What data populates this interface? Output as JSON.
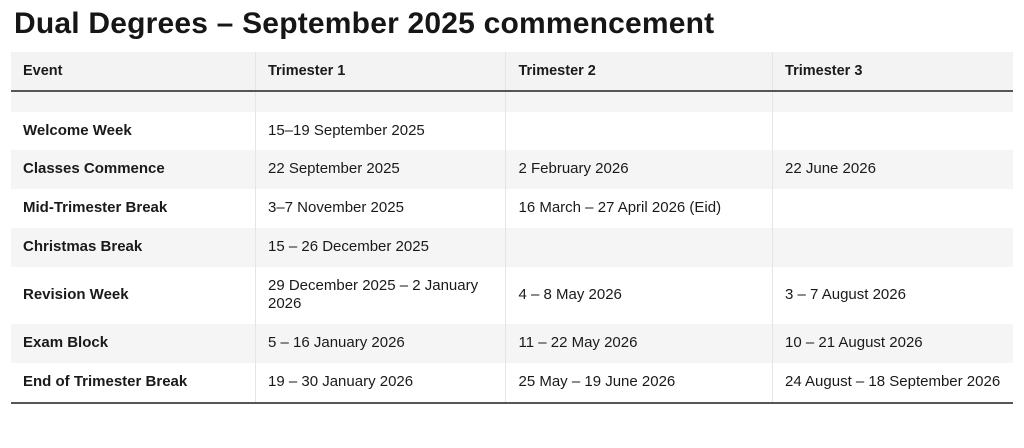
{
  "page": {
    "title": "Dual Degrees – September 2025 commencement"
  },
  "table": {
    "columns": [
      "Event",
      "Trimester 1",
      "Trimester 2",
      "Trimester 3"
    ],
    "rows": [
      {
        "cells": [
          "",
          "",
          "",
          ""
        ]
      },
      {
        "cells": [
          "Welcome Week",
          "15–19 September 2025",
          "",
          ""
        ]
      },
      {
        "cells": [
          "Classes Commence",
          "22 September 2025",
          "2 February 2026",
          "22 June 2026"
        ]
      },
      {
        "cells": [
          "Mid-Trimester Break",
          "3–7 November 2025",
          "16 March – 27 April 2026 (Eid)",
          ""
        ]
      },
      {
        "cells": [
          "Christmas Break",
          "15 – 26 December 2025",
          "",
          ""
        ]
      },
      {
        "cells": [
          "Revision Week",
          "29 December 2025 – 2 January 2026",
          "4 – 8 May 2026",
          "3 – 7 August 2026"
        ]
      },
      {
        "cells": [
          "Exam Block",
          "5 – 16 January 2026",
          "11 – 22 May 2026",
          "10 – 21 August 2026"
        ]
      },
      {
        "cells": [
          "End of Trimester Break",
          "19 – 30 January 2026",
          "25 May – 19 June 2026",
          "24 August – 18 September 2026"
        ]
      }
    ]
  },
  "colors": {
    "text": "#1a1a1a",
    "header_bg": "#f3f3f3",
    "stripe_bg": "#f5f5f5",
    "divider": "#e5e5e5",
    "rule": "#565656",
    "page_bg": "#ffffff"
  }
}
